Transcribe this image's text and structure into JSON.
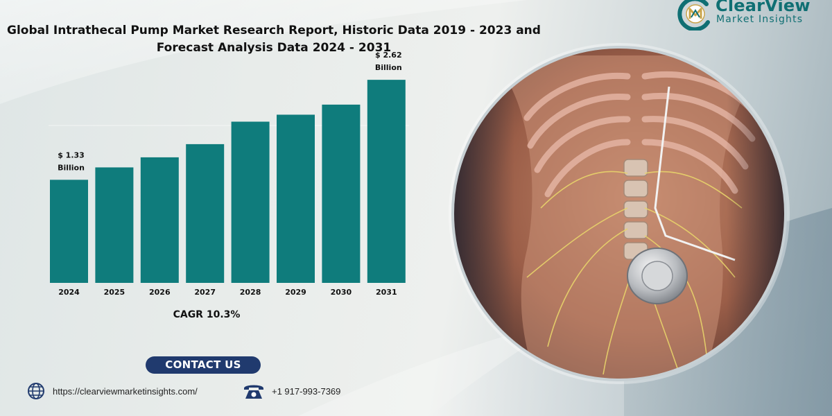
{
  "title": {
    "line1": "Global Intrathecal Pump Market Research Report, Historic Data 2019 - 2023 and",
    "line2": "Forecast Analysis Data 2024 - 2031"
  },
  "logo": {
    "name": "ClearView",
    "subtitle": "Market Insights",
    "icon": "cvm-monogram-icon",
    "color": "#0f6f73"
  },
  "chart_data": {
    "type": "bar",
    "title": "",
    "xlabel": "",
    "ylabel": "",
    "categories": [
      "2024",
      "2025",
      "2026",
      "2027",
      "2028",
      "2029",
      "2030",
      "2031"
    ],
    "values": [
      1.33,
      1.49,
      1.62,
      1.79,
      2.08,
      2.17,
      2.3,
      2.62
    ],
    "unit": "Billion (USD)",
    "ylim": [
      0,
      2.8
    ],
    "grid": false,
    "bar_color": "#0f7c7c",
    "annotations": [
      {
        "category": "2024",
        "line1": "$ 1.33",
        "line2": "Billion"
      },
      {
        "category": "2031",
        "line1": "$ 2.62",
        "line2": "Billion"
      }
    ],
    "footnote": "CAGR 10.3%"
  },
  "contact": {
    "button_label": "CONTACT US",
    "button_color": "#203a6e",
    "website": "https://clearviewmarketinsights.com/",
    "phone": "+1 917-993-7369",
    "website_icon": "globe-icon",
    "phone_icon": "telephone-icon"
  },
  "illustration": {
    "description_icon": "intrathecal-pump-anatomy-image"
  }
}
